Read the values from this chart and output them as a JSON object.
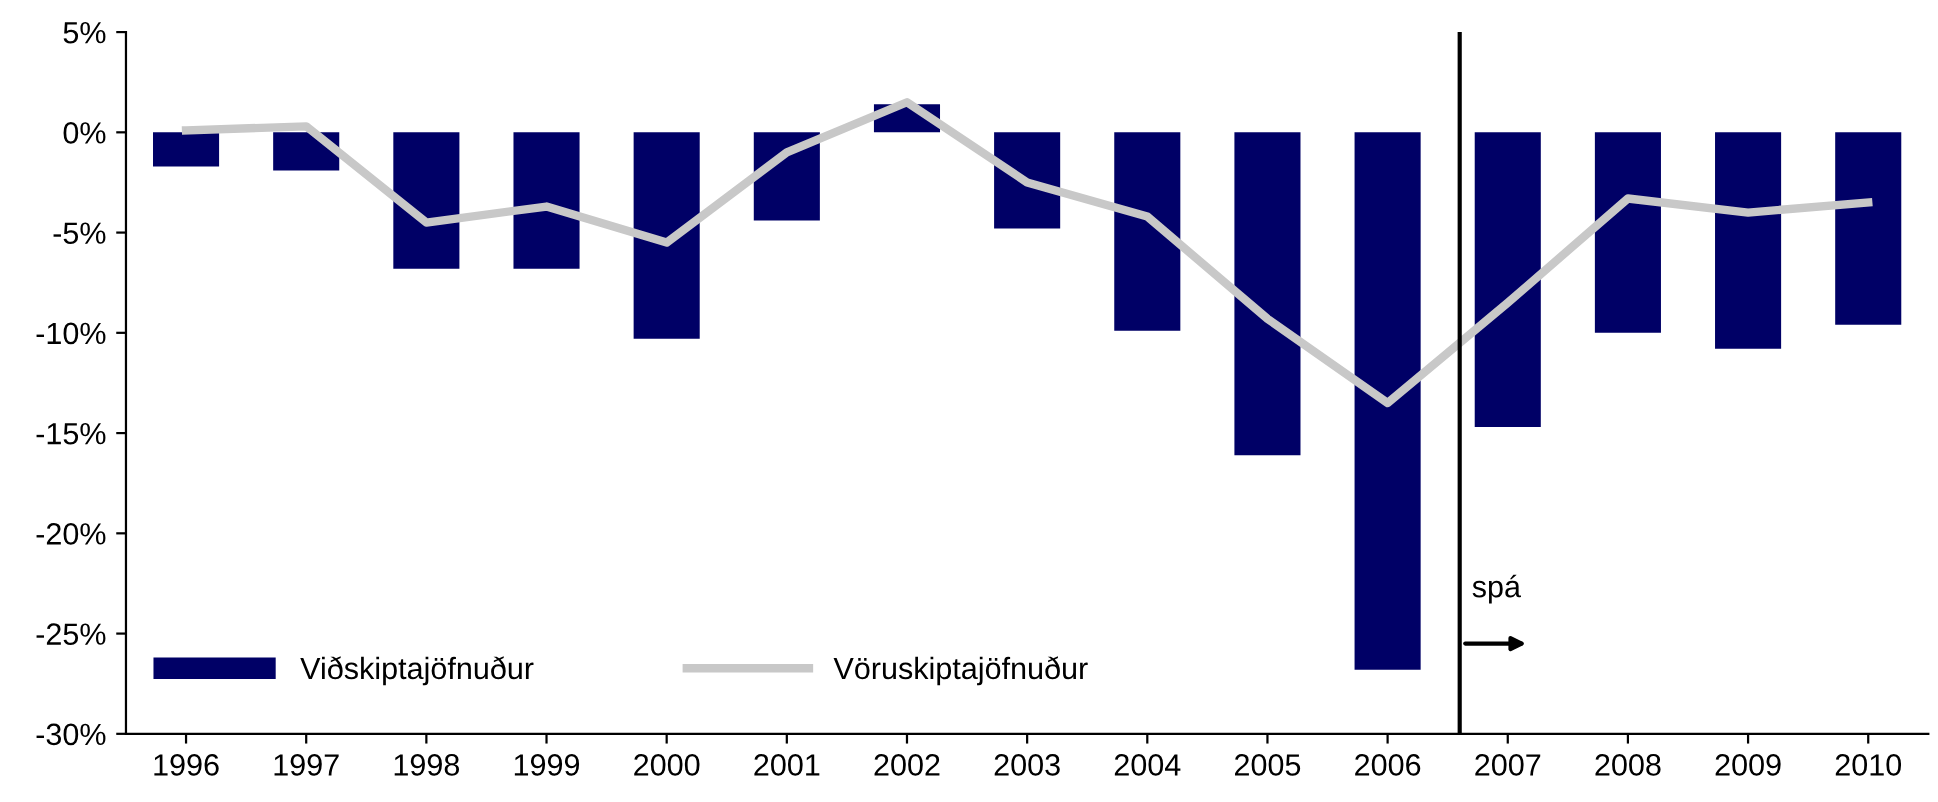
{
  "chart_data": {
    "type": "bar",
    "x": [
      1996,
      1997,
      1998,
      1999,
      2000,
      2001,
      2002,
      2003,
      2004,
      2005,
      2006,
      2007,
      2008,
      2009,
      2010
    ],
    "series": [
      {
        "name": "Viðskiptajöfnuður",
        "color": "#000066",
        "values": [
          -1.7,
          -1.9,
          -6.8,
          -6.8,
          -10.3,
          -4.4,
          1.4,
          -4.8,
          -9.9,
          -16.1,
          -26.8,
          -14.7,
          -10.0,
          -10.8,
          -9.6
        ]
      },
      {
        "name": "Vöruskiptajöfnuður",
        "type": "line",
        "color": "#c8c8c8",
        "values": [
          0.1,
          0.3,
          -4.5,
          -3.7,
          -5.5,
          -1.0,
          1.5,
          -2.5,
          -4.2,
          -9.3,
          -13.5,
          -8.5,
          -3.3,
          -4.0,
          -3.5
        ]
      }
    ],
    "xlim": [
      1995.5,
      2010.5
    ],
    "xticks": [
      1996,
      1997,
      1998,
      1999,
      2000,
      2001,
      2002,
      2003,
      2004,
      2005,
      2006,
      2007,
      2008,
      2009,
      2010
    ],
    "ylim": [
      -30,
      5
    ],
    "yticks": [
      {
        "value": 5,
        "label": "5%"
      },
      {
        "value": 0,
        "label": "0%"
      },
      {
        "value": -5,
        "label": "-5%"
      },
      {
        "value": -10,
        "label": "-10%"
      },
      {
        "value": -15,
        "label": "-15%"
      },
      {
        "value": -20,
        "label": "-20%"
      },
      {
        "value": -25,
        "label": "-25%"
      },
      {
        "value": -30,
        "label": "-30%"
      }
    ],
    "ref_lines": [
      {
        "axis": "x",
        "value": 2006.6,
        "color": "#000000"
      }
    ],
    "annotations": [
      {
        "text": "spá",
        "x": 2006.6,
        "y": -25.5
      }
    ],
    "grid": false,
    "legend": "bottom left",
    "marker": "none",
    "line_style": "solid"
  }
}
